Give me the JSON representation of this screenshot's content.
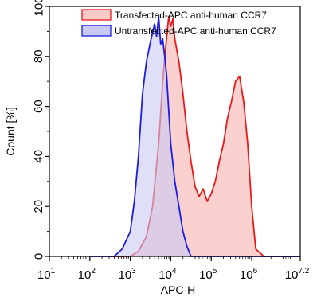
{
  "chart_data": {
    "type": "area",
    "xlabel": "APC-H",
    "ylabel": "Count [%]",
    "x_scale": "log",
    "xlim": [
      1,
      7.2
    ],
    "ylim": [
      0,
      100
    ],
    "x_ticks": [
      {
        "base": "10",
        "exp": "1",
        "value": 1
      },
      {
        "base": "10",
        "exp": "2",
        "value": 2
      },
      {
        "base": "10",
        "exp": "3",
        "value": 3
      },
      {
        "base": "10",
        "exp": "4",
        "value": 4
      },
      {
        "base": "10",
        "exp": "5",
        "value": 5
      },
      {
        "base": "10",
        "exp": "6",
        "value": 6
      },
      {
        "base": "10",
        "exp": "7.2",
        "value": 7.2
      }
    ],
    "y_ticks": [
      "0",
      "20",
      "40",
      "60",
      "80",
      "100"
    ],
    "legend_position": "top",
    "series": [
      {
        "name": "Transfected-APC anti-human CCR7",
        "color": "#e8191c",
        "fill": "#f9c9c6",
        "x": [
          2.5,
          3.0,
          3.2,
          3.4,
          3.55,
          3.7,
          3.8,
          3.9,
          3.95,
          4.0,
          4.05,
          4.1,
          4.2,
          4.3,
          4.4,
          4.5,
          4.6,
          4.7,
          4.8,
          4.9,
          5.0,
          5.1,
          5.2,
          5.3,
          5.4,
          5.5,
          5.6,
          5.7,
          5.8,
          5.9,
          6.0,
          6.1,
          6.3,
          7.2
        ],
        "y": [
          0,
          0,
          2,
          8,
          20,
          45,
          70,
          88,
          96,
          92,
          95,
          87,
          78,
          65,
          50,
          38,
          28,
          24,
          27,
          22,
          25,
          30,
          38,
          45,
          55,
          62,
          70,
          72,
          62,
          45,
          20,
          3,
          0,
          0
        ]
      },
      {
        "name": "Untransfected-APC anti-human CCR7",
        "color": "#1c1ce0",
        "fill": "#c9c9f4",
        "x": [
          2.0,
          2.6,
          2.8,
          3.0,
          3.1,
          3.2,
          3.3,
          3.4,
          3.5,
          3.6,
          3.65,
          3.7,
          3.75,
          3.8,
          3.85,
          3.9,
          3.95,
          4.0,
          4.1,
          4.2,
          4.3,
          4.4,
          4.5,
          4.7,
          7.2
        ],
        "y": [
          0,
          0,
          3,
          10,
          22,
          40,
          65,
          78,
          86,
          93,
          88,
          96,
          85,
          87,
          80,
          72,
          58,
          45,
          30,
          20,
          10,
          4,
          0,
          0,
          0
        ]
      }
    ]
  }
}
